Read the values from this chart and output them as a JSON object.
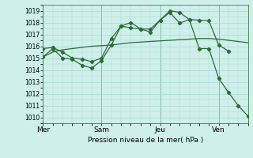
{
  "background_color": "#cff0ea",
  "grid_color": "#a8d8d0",
  "line_color": "#2d6b3a",
  "ylabel": "Pression niveau de la mer( hPa )",
  "ylim": [
    1009.5,
    1019.5
  ],
  "yticks": [
    1010,
    1011,
    1012,
    1013,
    1014,
    1015,
    1016,
    1017,
    1018,
    1019
  ],
  "day_labels": [
    "Mer",
    "Sam",
    "Jeu",
    "Ven"
  ],
  "day_positions": [
    0,
    24,
    48,
    72
  ],
  "xlim": [
    0,
    84
  ],
  "s1_x": [
    0,
    4,
    8,
    12,
    16,
    20,
    24,
    28,
    32,
    36,
    40,
    44,
    48,
    52,
    56,
    60,
    64,
    68,
    72,
    76,
    80,
    84
  ],
  "s1_y": [
    1015.1,
    1015.5,
    1015.7,
    1015.8,
    1015.9,
    1016.0,
    1016.05,
    1016.1,
    1016.2,
    1016.3,
    1016.35,
    1016.4,
    1016.45,
    1016.5,
    1016.55,
    1016.6,
    1016.65,
    1016.65,
    1016.6,
    1016.5,
    1016.4,
    1016.3
  ],
  "s2_x": [
    0,
    4,
    8,
    12,
    16,
    20,
    24,
    28,
    32,
    36,
    40,
    44,
    48,
    52,
    56,
    60,
    64,
    68,
    72,
    76
  ],
  "s2_y": [
    1015.8,
    1015.9,
    1015.5,
    1015.0,
    1014.9,
    1014.7,
    1015.0,
    1016.65,
    1017.7,
    1017.55,
    1017.45,
    1017.45,
    1018.2,
    1018.85,
    1017.95,
    1018.25,
    1018.2,
    1018.15,
    1016.1,
    1015.6
  ],
  "s3_x": [
    0,
    4,
    8,
    12,
    16,
    20,
    24,
    28,
    32,
    36,
    40,
    44,
    48,
    52,
    56,
    60,
    64,
    68,
    72,
    76,
    80,
    84
  ],
  "s3_y": [
    1015.1,
    1015.8,
    1015.0,
    1014.9,
    1014.4,
    1014.15,
    1014.8,
    1016.1,
    1017.7,
    1018.0,
    1017.45,
    1017.2,
    1018.2,
    1019.0,
    1018.85,
    1018.25,
    1015.8,
    1015.8,
    1013.3,
    1012.1,
    1011.0,
    1010.1
  ]
}
